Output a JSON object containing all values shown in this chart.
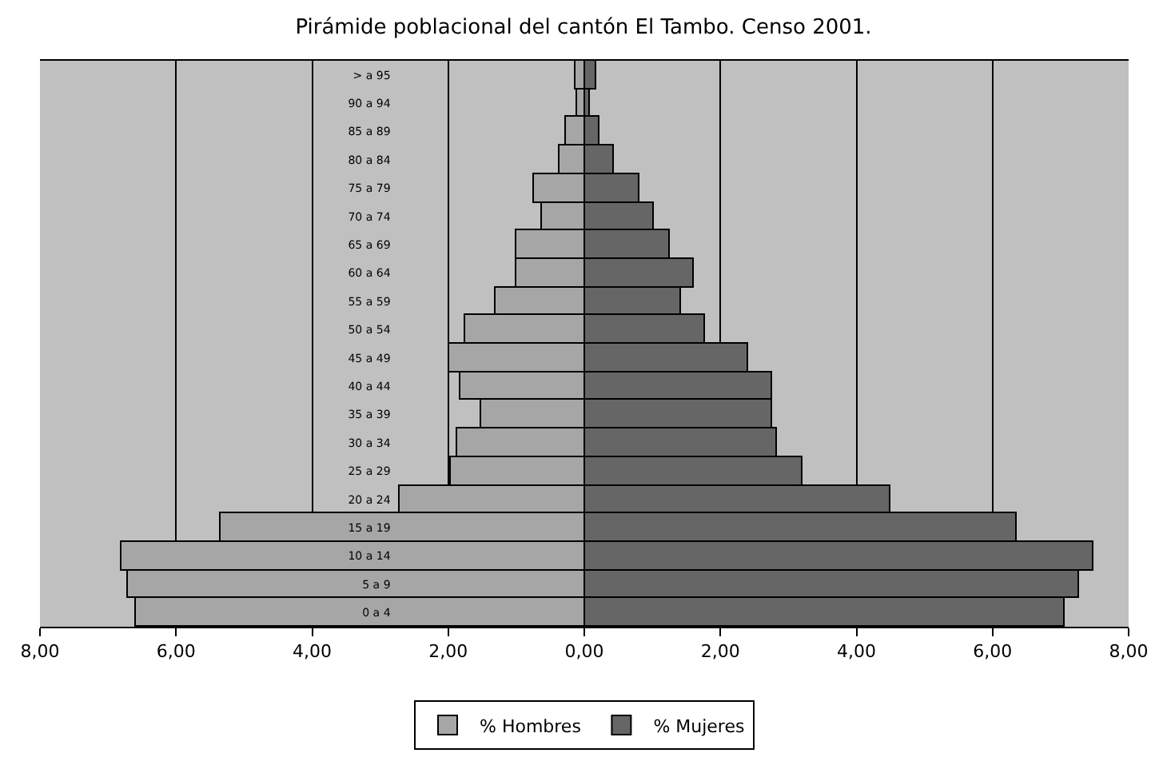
{
  "chart_data": {
    "type": "bar",
    "orientation": "horizontal",
    "title": "Pirámide poblacional del cantón El Tambo. Censo 2001.",
    "categories": [
      "> a 95",
      "90 a 94",
      "85 a 89",
      "80 a 84",
      "75 a 79",
      "70 a 74",
      "65 a 69",
      "60 a 64",
      "55 a 59",
      "50 a 54",
      "45 a 49",
      "40 a 44",
      "35 a 39",
      "30 a 34",
      "25 a 29",
      "20 a 24",
      "15 a 19",
      "10 a 14",
      "5 a 9",
      "0 a 4"
    ],
    "series": [
      {
        "name": "% Hombres",
        "color": "#a6a6a6",
        "values": [
          -0.14,
          -0.1,
          -0.27,
          -0.37,
          -0.73,
          -0.63,
          -1.01,
          -1.0,
          -1.3,
          -1.74,
          -1.99,
          -1.83,
          -1.51,
          -1.87,
          -1.96,
          -2.71,
          -5.34,
          -6.8,
          -6.71,
          -6.58
        ]
      },
      {
        "name": "% Mujeres",
        "color": "#666666",
        "values": [
          0.18,
          0.08,
          0.23,
          0.44,
          0.8,
          1.03,
          1.26,
          1.6,
          1.43,
          1.78,
          2.4,
          2.76,
          2.75,
          2.84,
          3.2,
          4.5,
          6.35,
          7.48,
          7.28,
          7.07
        ]
      }
    ],
    "xlim": [
      -8,
      8
    ],
    "xticks": [
      {
        "value": -8,
        "label": "8,00"
      },
      {
        "value": -6,
        "label": "6,00"
      },
      {
        "value": -4,
        "label": "4,00"
      },
      {
        "value": -2,
        "label": "2,00"
      },
      {
        "value": 0,
        "label": "0,00"
      },
      {
        "value": 2,
        "label": "2,00"
      },
      {
        "value": 4,
        "label": "4,00"
      },
      {
        "value": 6,
        "label": "6,00"
      },
      {
        "value": 8,
        "label": "8,00"
      }
    ],
    "grid": "x",
    "legend": "bottom",
    "stacked": true
  }
}
